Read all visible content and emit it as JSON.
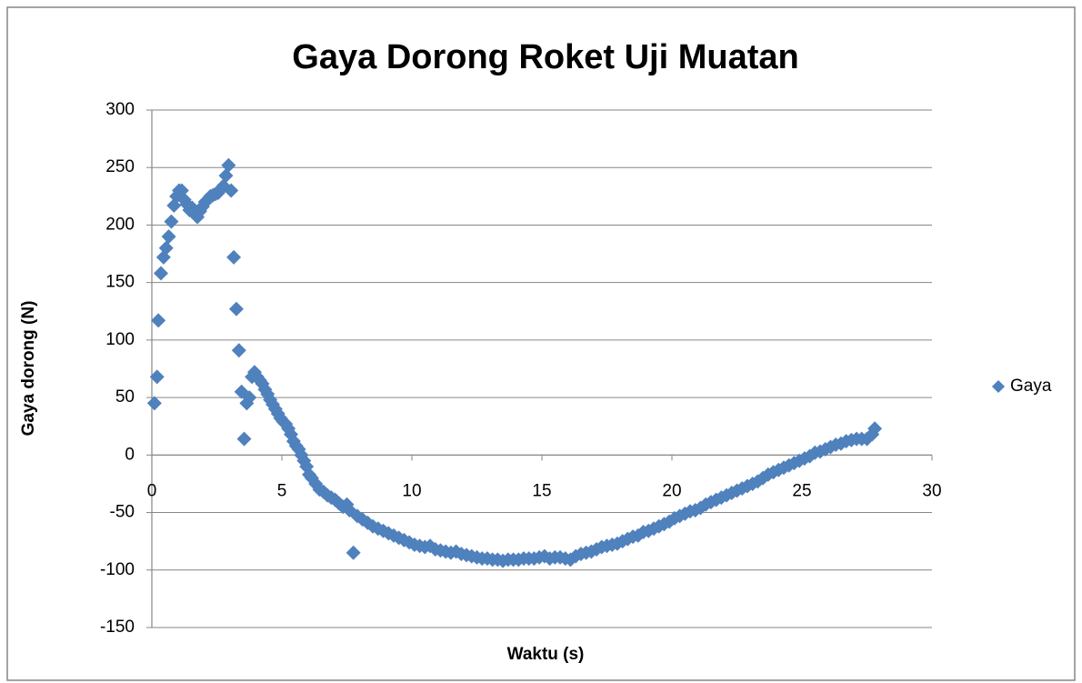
{
  "chart_data": {
    "type": "scatter",
    "title": "Gaya Dorong Roket Uji Muatan",
    "x_label": "Waktu (s)",
    "y_label": "Gaya dorong (N)",
    "xlim": [
      0,
      30
    ],
    "xticks": [
      0,
      5,
      10,
      15,
      20,
      25,
      30
    ],
    "ylim": [
      -150,
      300
    ],
    "yticks": [
      -150,
      -100,
      -50,
      0,
      50,
      100,
      150,
      200,
      250,
      300
    ],
    "grid": true,
    "legend": "right",
    "series": [
      {
        "name": "Gaya",
        "color": "#4f81bd",
        "x": [
          0.1,
          0.2,
          0.25,
          0.35,
          0.45,
          0.55,
          0.65,
          0.75,
          0.85,
          0.95,
          1.05,
          1.15,
          1.25,
          1.35,
          1.45,
          1.55,
          1.65,
          1.75,
          1.85,
          1.95,
          2.05,
          2.15,
          2.25,
          2.35,
          2.45,
          2.55,
          2.65,
          2.75,
          2.85,
          2.95,
          3.05,
          3.15,
          3.25,
          3.35,
          3.45,
          3.55,
          3.65,
          3.75,
          3.85,
          3.95,
          4.05,
          4.15,
          4.25,
          4.35,
          4.45,
          4.55,
          4.65,
          4.75,
          4.85,
          4.95,
          5.05,
          5.15,
          5.25,
          5.35,
          5.45,
          5.55,
          5.65,
          5.75,
          5.85,
          5.95,
          6.05,
          6.15,
          6.3,
          6.45,
          6.6,
          6.75,
          6.9,
          7.05,
          7.2,
          7.35,
          7.5,
          7.6,
          7.75,
          7.9,
          8.1,
          8.3,
          8.5,
          8.7,
          8.9,
          9.1,
          9.3,
          9.5,
          9.7,
          9.9,
          10.1,
          10.3,
          10.5,
          10.7,
          10.9,
          11.1,
          11.3,
          11.5,
          11.7,
          11.9,
          12.1,
          12.3,
          12.5,
          12.7,
          12.9,
          13.1,
          13.3,
          13.5,
          13.7,
          13.9,
          14.1,
          14.3,
          14.5,
          14.7,
          14.9,
          15.1,
          15.3,
          15.5,
          15.7,
          15.9,
          16.1,
          16.3,
          16.5,
          16.7,
          16.9,
          17.1,
          17.3,
          17.5,
          17.7,
          17.9,
          18.1,
          18.3,
          18.5,
          18.7,
          18.9,
          19.1,
          19.3,
          19.5,
          19.7,
          19.9,
          20.1,
          20.3,
          20.5,
          20.7,
          20.9,
          21.1,
          21.3,
          21.5,
          21.7,
          21.9,
          22.1,
          22.3,
          22.5,
          22.7,
          22.9,
          23.1,
          23.3,
          23.5,
          23.7,
          23.9,
          24.1,
          24.3,
          24.5,
          24.7,
          24.9,
          25.1,
          25.3,
          25.5,
          25.7,
          25.9,
          26.1,
          26.3,
          26.5,
          26.7,
          26.9,
          27.1,
          27.3,
          27.5,
          27.7,
          27.8
        ],
        "values": [
          45,
          68,
          117,
          158,
          172,
          180,
          190,
          203,
          217,
          225,
          230,
          230,
          222,
          218,
          213,
          215,
          210,
          207,
          212,
          216,
          220,
          222,
          225,
          226,
          227,
          228,
          231,
          234,
          243,
          252,
          230,
          172,
          127,
          91,
          55,
          14,
          45,
          50,
          68,
          72,
          68,
          65,
          62,
          57,
          53,
          48,
          44,
          40,
          36,
          32,
          29,
          27,
          23,
          18,
          12,
          8,
          5,
          0,
          -5,
          -10,
          -17,
          -20,
          -25,
          -30,
          -32,
          -35,
          -37,
          -39,
          -42,
          -45,
          -43,
          -48,
          -85,
          -53,
          -56,
          -59,
          -62,
          -64,
          -66,
          -68,
          -70,
          -72,
          -74,
          -76,
          -78,
          -79,
          -80,
          -79,
          -82,
          -83,
          -84,
          -85,
          -84,
          -86,
          -87,
          -88,
          -89,
          -90,
          -90,
          -91,
          -91,
          -92,
          -91,
          -91,
          -91,
          -90,
          -90,
          -90,
          -89,
          -88,
          -90,
          -89,
          -89,
          -90,
          -91,
          -88,
          -86,
          -85,
          -84,
          -82,
          -80,
          -79,
          -78,
          -77,
          -75,
          -73,
          -71,
          -70,
          -67,
          -66,
          -64,
          -62,
          -60,
          -58,
          -55,
          -53,
          -51,
          -49,
          -48,
          -46,
          -43,
          -41,
          -39,
          -37,
          -35,
          -33,
          -31,
          -29,
          -27,
          -25,
          -23,
          -20,
          -17,
          -15,
          -13,
          -11,
          -9,
          -7,
          -5,
          -3,
          -1,
          2,
          3,
          5,
          7,
          9,
          10,
          12,
          13,
          14,
          14,
          14,
          18,
          23
        ]
      }
    ]
  }
}
